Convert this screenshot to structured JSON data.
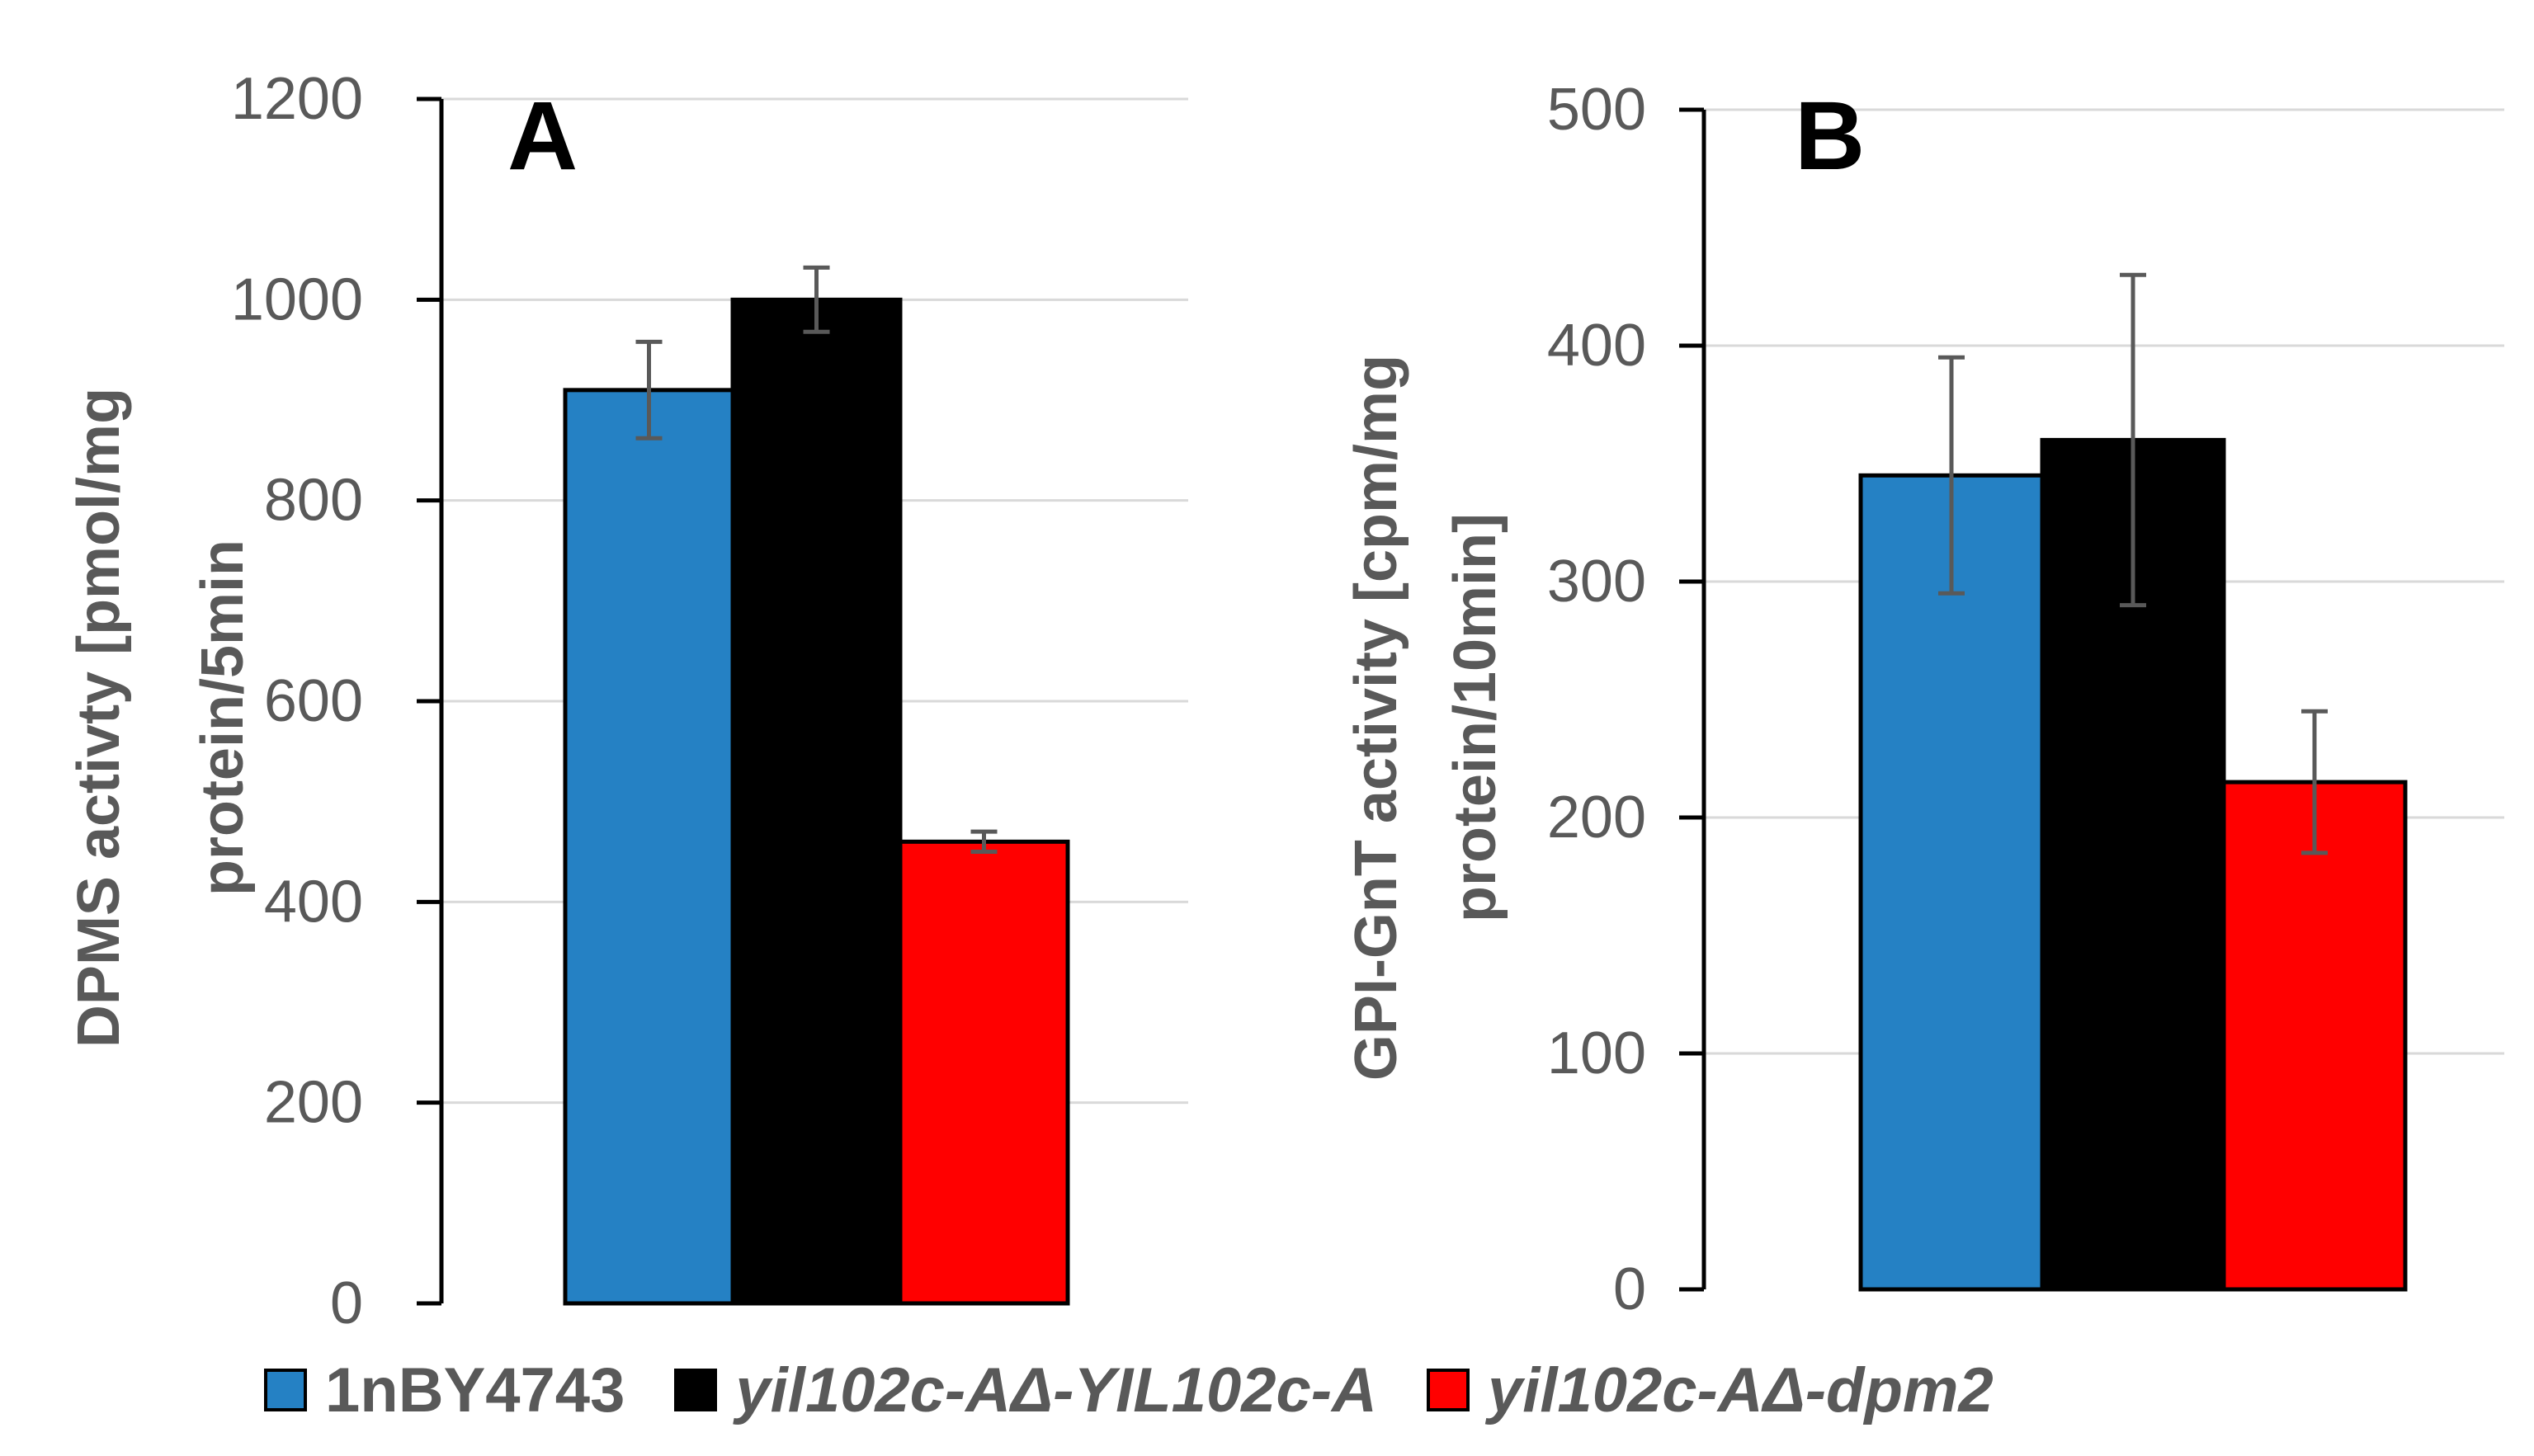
{
  "colors": {
    "series": [
      "#2581c4",
      "#000000",
      "#ff0000"
    ],
    "grid": "#d9d9d9",
    "axis": "#000000",
    "text": "#595959",
    "error_bar": "#595959"
  },
  "legend": {
    "items": [
      {
        "label": "1nBY4743",
        "italic": false
      },
      {
        "label": "yil102c-AΔ-YIL102c-A",
        "italic": true
      },
      {
        "label": "yil102c-AΔ-dpm2",
        "italic": true
      }
    ]
  },
  "chart_data": [
    {
      "type": "bar",
      "title": "A",
      "ylabel_lines": [
        "DPMS activty [pmol/mg",
        "protein/5min"
      ],
      "ylim": [
        0,
        1200
      ],
      "yticks": [
        0,
        200,
        400,
        600,
        800,
        1000,
        1200
      ],
      "grid": true,
      "series": [
        {
          "name": "1nBY4743",
          "value": 910,
          "error": 48
        },
        {
          "name": "yil102c-AΔ-YIL102c-A",
          "value": 1000,
          "error": 32
        },
        {
          "name": "yil102c-AΔ-dpm2",
          "value": 460,
          "error": 10
        }
      ]
    },
    {
      "type": "bar",
      "title": "B",
      "ylabel_lines": [
        "GPI-GnT activity [cpm/mg",
        "protein/10min]"
      ],
      "ylim": [
        0,
        500
      ],
      "yticks": [
        0,
        100,
        200,
        300,
        400,
        500
      ],
      "grid": true,
      "series": [
        {
          "name": "1nBY4743",
          "value": 345,
          "error": 50
        },
        {
          "name": "yil102c-AΔ-YIL102c-A",
          "value": 360,
          "error": 70
        },
        {
          "name": "yil102c-AΔ-dpm2",
          "value": 215,
          "error": 30
        }
      ]
    }
  ]
}
